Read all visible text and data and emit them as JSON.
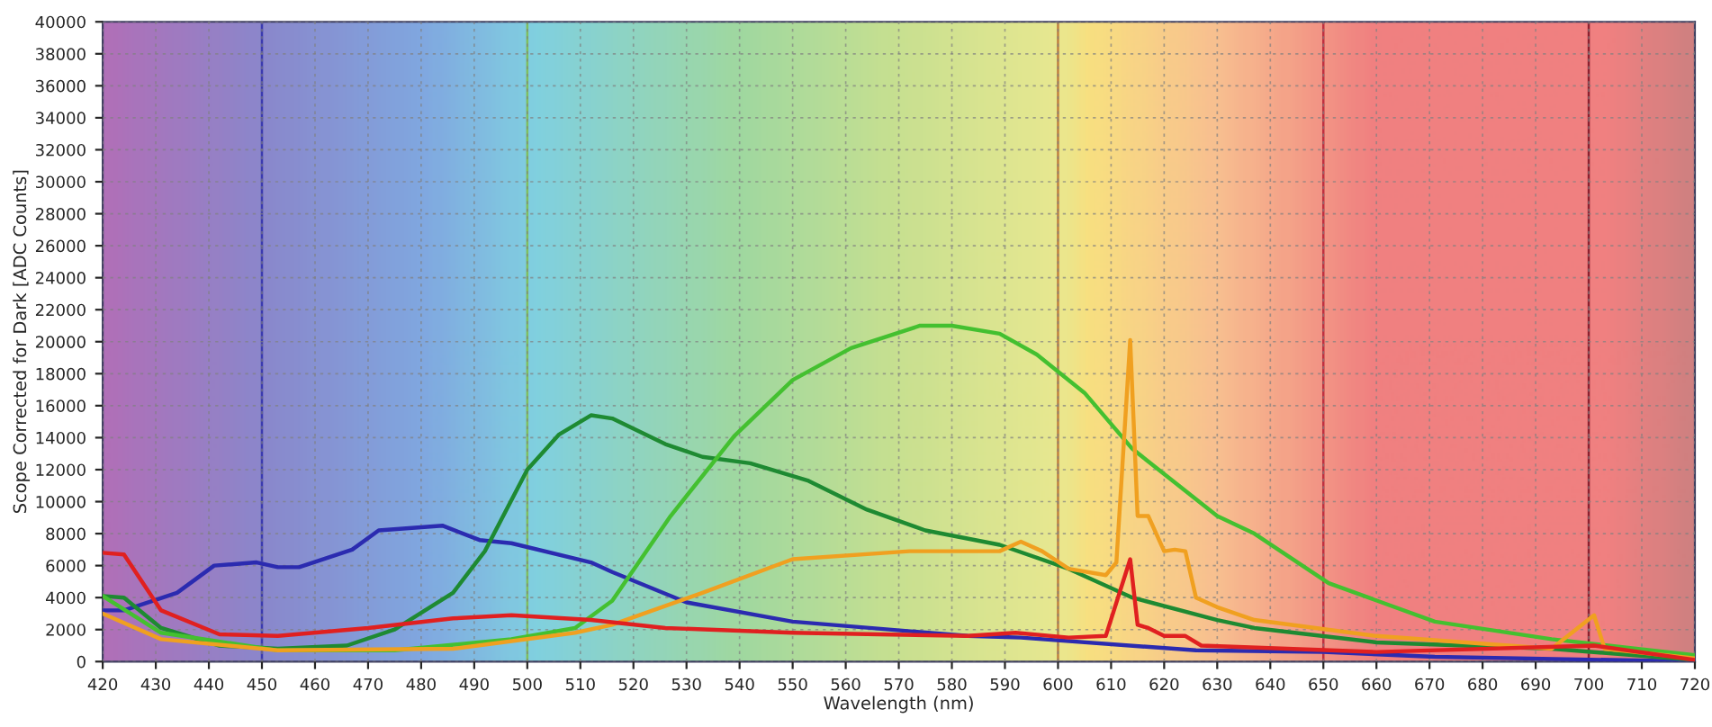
{
  "chart_data": {
    "type": "line",
    "xlabel": "Wavelength (nm)",
    "ylabel": "Scope Corrected for Dark [ADC Counts]",
    "xlim": [
      420,
      720
    ],
    "ylim": [
      0,
      40000
    ],
    "xticks": [
      420,
      430,
      440,
      450,
      460,
      470,
      480,
      490,
      500,
      510,
      520,
      530,
      540,
      550,
      560,
      570,
      580,
      590,
      600,
      610,
      620,
      630,
      640,
      650,
      660,
      670,
      680,
      690,
      700,
      710,
      720
    ],
    "yticks": [
      0,
      2000,
      4000,
      6000,
      8000,
      10000,
      12000,
      14000,
      16000,
      18000,
      20000,
      22000,
      24000,
      26000,
      28000,
      30000,
      32000,
      34000,
      36000,
      38000,
      40000
    ],
    "grid": true,
    "line_style": "solid",
    "marker": "none",
    "ref_lines": [
      {
        "axis": "x",
        "value": 450,
        "color": "#3b3bb0"
      },
      {
        "axis": "x",
        "value": 500,
        "color": "#7fbf5f"
      },
      {
        "axis": "x",
        "value": 600,
        "color": "#c08040"
      },
      {
        "axis": "x",
        "value": 650,
        "color": "#c03040"
      },
      {
        "axis": "x",
        "value": 700,
        "color": "#8b2030"
      }
    ],
    "series": [
      {
        "color": "#2b2bb0",
        "x": [
          420,
          424,
          434,
          441,
          449,
          453,
          457,
          467,
          472,
          484,
          491,
          497,
          512,
          516,
          530,
          550,
          583,
          593,
          626,
          650,
          671,
          720
        ],
        "values": [
          3200,
          3200,
          4300,
          6000,
          6200,
          5900,
          5900,
          7000,
          8200,
          8500,
          7600,
          7400,
          6200,
          5600,
          3700,
          2500,
          1600,
          1500,
          700,
          600,
          300,
          0
        ]
      },
      {
        "color": "#1e8a32",
        "x": [
          420,
          424,
          431,
          442,
          453,
          466,
          475,
          486,
          492,
          500,
          506,
          512,
          516,
          526,
          533,
          542,
          553,
          564,
          575,
          589,
          602,
          614,
          630,
          637,
          660,
          693,
          720
        ],
        "values": [
          4100,
          4000,
          2100,
          1000,
          800,
          1000,
          2000,
          4300,
          6900,
          12000,
          14200,
          15400,
          15200,
          13600,
          12800,
          12400,
          11300,
          9500,
          8200,
          7300,
          5800,
          4000,
          2600,
          2100,
          1200,
          800,
          100
        ]
      },
      {
        "color": "#44c030",
        "x": [
          420,
          431,
          453,
          475,
          497,
          509,
          516,
          527,
          539,
          550,
          561,
          574,
          580,
          589,
          596,
          605,
          614,
          630,
          637,
          651,
          671,
          693,
          720
        ],
        "values": [
          4100,
          1800,
          700,
          700,
          1400,
          2100,
          3800,
          9100,
          14100,
          17600,
          19600,
          21000,
          21000,
          20500,
          19200,
          16800,
          13300,
          9100,
          8000,
          4900,
          2500,
          1400,
          400
        ]
      },
      {
        "color": "#f0a020",
        "x": [
          420,
          431,
          453,
          486,
          509,
          516,
          533,
          550,
          572,
          589,
          593,
          597,
          602,
          609,
          611,
          613.6,
          615,
          617,
          620,
          622,
          624,
          626,
          630,
          637,
          660,
          693,
          701,
          703,
          720
        ],
        "values": [
          3000,
          1400,
          700,
          800,
          1800,
          2300,
          4300,
          6400,
          6900,
          6900,
          7500,
          6900,
          5800,
          5400,
          6200,
          20100,
          9100,
          9100,
          6900,
          7000,
          6900,
          4000,
          3400,
          2600,
          1600,
          800,
          2900,
          800,
          200
        ]
      },
      {
        "color": "#e02020",
        "x": [
          420,
          424,
          431,
          442,
          453,
          470,
          486,
          497,
          512,
          526,
          550,
          583,
          592,
          602,
          609,
          613.6,
          615,
          617,
          620,
          624,
          627,
          660,
          701,
          720
        ],
        "values": [
          6800,
          6700,
          3200,
          1700,
          1600,
          2100,
          2700,
          2900,
          2600,
          2100,
          1800,
          1600,
          1800,
          1500,
          1600,
          6400,
          2300,
          2100,
          1600,
          1600,
          1000,
          600,
          1000,
          100
        ]
      }
    ]
  }
}
